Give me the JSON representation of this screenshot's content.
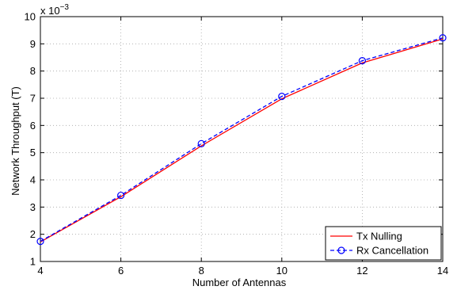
{
  "chart_data": {
    "type": "line",
    "xlabel": "Number of Antennas",
    "ylabel": "Network Throughput (T)",
    "xlim": [
      4,
      14
    ],
    "ylim": [
      1,
      10
    ],
    "xticks": [
      4,
      6,
      8,
      10,
      12,
      14
    ],
    "yticks": [
      1,
      2,
      3,
      4,
      5,
      6,
      7,
      8,
      9,
      10
    ],
    "y_multiplier_base": "x 10",
    "y_multiplier_exponent": "−3",
    "grid": true,
    "legend_position": "bottom-right",
    "series": [
      {
        "name": "Tx Nulling",
        "color": "#ff0000",
        "line_style": "solid",
        "marker": "none",
        "x": [
          4,
          6,
          8,
          10,
          12,
          14
        ],
        "y": [
          1.72,
          3.38,
          5.25,
          6.98,
          8.3,
          9.18
        ]
      },
      {
        "name": "Rx Cancellation",
        "color": "#0000ff",
        "line_style": "dashed",
        "marker": "circle",
        "x": [
          4,
          6,
          8,
          10,
          12,
          14
        ],
        "y": [
          1.74,
          3.43,
          5.33,
          7.07,
          8.38,
          9.22
        ]
      }
    ]
  }
}
